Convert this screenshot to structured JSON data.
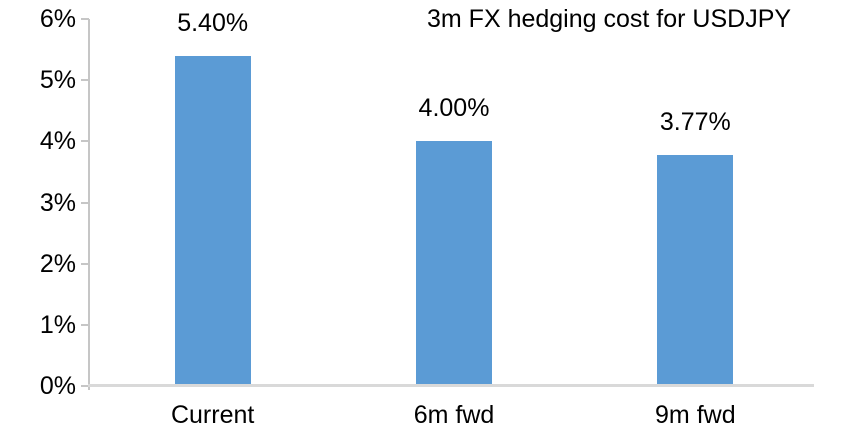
{
  "chart_data": {
    "type": "bar",
    "title": "3m FX hedging cost for USDJPY",
    "categories": [
      "Current",
      "6m fwd",
      "9m fwd"
    ],
    "values": [
      5.4,
      4.0,
      3.77
    ],
    "data_labels": [
      "5.40%",
      "4.00%",
      "3.77%"
    ],
    "y_tick_labels": [
      "6%",
      "5%",
      "4%",
      "3%",
      "2%",
      "1%",
      "0%"
    ],
    "ylim": [
      0,
      6
    ],
    "xlabel": "",
    "ylabel": "",
    "grid": false,
    "legend_position": "none",
    "colors": {
      "bar": "#5b9bd5",
      "axis": "#c6c6c6",
      "baseline": "#d9d9d9",
      "text": "#000000",
      "background": "#ffffff"
    }
  }
}
